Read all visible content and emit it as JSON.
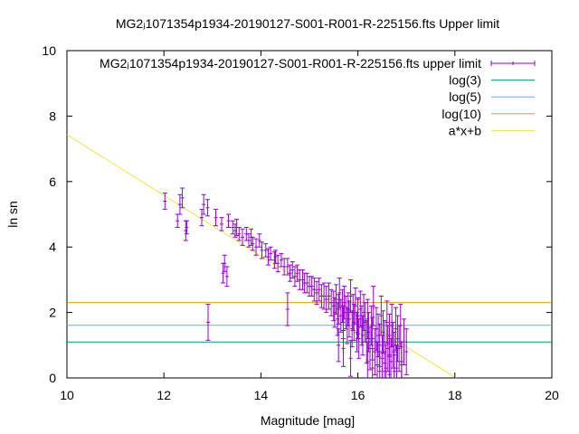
{
  "chart_data": {
    "type": "scatter",
    "title": "MG2ⱼ1071354p1934-20190127-S001-R001-R-225156.fts Upper limit",
    "xlabel": "Magnitude [mag]",
    "ylabel": "ln sn",
    "xlim": [
      10,
      20
    ],
    "ylim": [
      0,
      10
    ],
    "x_ticks": [
      "10",
      "12",
      "14",
      "16",
      "18",
      "20"
    ],
    "y_ticks": [
      "0",
      "2",
      "4",
      "6",
      "8",
      "10"
    ],
    "grid": false,
    "legend_position": "top-right",
    "legend": [
      {
        "label": "MG2ⱼ1071354p1934-20190127-S001-R001-R-225156.fts upper limit",
        "color": "#9400d3",
        "style": "errorbar"
      },
      {
        "label": "log(3)",
        "color": "#009e73",
        "style": "line"
      },
      {
        "label": "log(5)",
        "color": "#56b4e9",
        "style": "line"
      },
      {
        "label": "log(10)",
        "color": "#e69f00",
        "style": "line"
      },
      {
        "label": "a*x+b",
        "color": "#f0e442",
        "style": "line"
      }
    ],
    "hlines": [
      {
        "name": "log(3)",
        "y": 1.0986,
        "color": "#009e73"
      },
      {
        "name": "log(5)",
        "y": 1.6094,
        "color": "#56b4e9"
      },
      {
        "name": "log(10)",
        "y": 2.3026,
        "color": "#e69f00"
      }
    ],
    "fit_line": {
      "name": "a*x+b",
      "a": -0.926,
      "b": 16.69,
      "color": "#f0e442"
    },
    "series": [
      {
        "name": "MG2ⱼ1071354p1934-20190127-S001-R001-R-225156.fts upper limit",
        "color": "#9400d3",
        "x": [
          12.02,
          12.28,
          12.33,
          12.38,
          12.45,
          12.47,
          12.78,
          12.82,
          12.9,
          12.91,
          13.07,
          13.19,
          13.22,
          13.25,
          13.3,
          13.33,
          13.42,
          13.47,
          13.5,
          13.55,
          13.62,
          13.7,
          13.75,
          13.8,
          13.83,
          13.9,
          13.97,
          14.02,
          14.1,
          14.15,
          14.2,
          14.28,
          14.3,
          14.35,
          14.42,
          14.48,
          14.55,
          14.6,
          14.65,
          14.7,
          14.75,
          14.8,
          14.86,
          14.9,
          14.95,
          15.0,
          15.05,
          15.1,
          15.15,
          15.2,
          15.25,
          15.3,
          15.35,
          15.4,
          15.45,
          15.5,
          15.52,
          15.55,
          15.58,
          15.6,
          15.62,
          15.65,
          15.68,
          15.7,
          15.72,
          15.75,
          15.78,
          15.8,
          15.82,
          15.85,
          15.88,
          15.9,
          15.92,
          15.95,
          15.98,
          16.0,
          16.02,
          16.05,
          16.08,
          16.1,
          16.12,
          16.15,
          16.18,
          16.2,
          16.22,
          16.25,
          16.28,
          16.3,
          16.32,
          16.35,
          16.38,
          16.4,
          16.42,
          16.45,
          16.48,
          16.5,
          16.52,
          16.55,
          16.58,
          16.6,
          16.62,
          16.65,
          16.68,
          16.7,
          16.72,
          16.75,
          16.78,
          16.8,
          16.82,
          16.85,
          16.88,
          16.9,
          16.95,
          17.0,
          14.55,
          15.6,
          15.7,
          15.85,
          16.0,
          16.2,
          16.3,
          16.45,
          16.55,
          16.65,
          16.75,
          16.9
        ],
        "y": [
          5.4,
          4.8,
          5.3,
          5.5,
          4.5,
          4.6,
          4.9,
          5.3,
          5.2,
          1.7,
          4.9,
          4.7,
          3.2,
          3.5,
          3.1,
          4.8,
          4.6,
          4.5,
          4.6,
          4.4,
          4.3,
          4.4,
          4.2,
          4.3,
          4.1,
          4.0,
          4.2,
          3.9,
          3.9,
          3.7,
          3.8,
          3.6,
          3.7,
          3.5,
          3.6,
          3.4,
          3.4,
          3.2,
          3.3,
          3.1,
          3.2,
          3.0,
          3.0,
          2.9,
          2.9,
          2.8,
          2.8,
          2.7,
          2.6,
          2.7,
          2.5,
          2.5,
          2.4,
          2.5,
          2.3,
          2.2,
          2.0,
          2.4,
          1.8,
          2.1,
          2.6,
          1.9,
          2.2,
          1.7,
          2.3,
          2.0,
          1.6,
          2.1,
          1.8,
          2.5,
          1.5,
          2.0,
          1.7,
          2.2,
          1.4,
          1.9,
          1.2,
          2.1,
          1.6,
          1.3,
          2.0,
          1.7,
          1.1,
          1.8,
          1.4,
          0.9,
          1.6,
          1.2,
          2.2,
          0.8,
          1.5,
          0.4,
          1.3,
          1.0,
          1.9,
          0.6,
          1.4,
          1.1,
          0.3,
          1.7,
          0.9,
          1.3,
          0.5,
          1.6,
          1.0,
          0.7,
          1.5,
          0.3,
          1.2,
          0.9,
          1.6,
          0.4,
          1.1,
          0.8,
          2.1,
          1.0,
          0.9,
          0.6,
          1.8,
          0.5,
          0.3,
          0.2,
          0.2,
          0.1,
          0.2,
          0.5
        ],
        "err": [
          0.25,
          0.2,
          0.3,
          0.3,
          0.3,
          0.2,
          0.25,
          0.3,
          0.25,
          0.55,
          0.25,
          0.2,
          0.3,
          0.25,
          0.3,
          0.2,
          0.2,
          0.2,
          0.25,
          0.2,
          0.25,
          0.2,
          0.2,
          0.25,
          0.2,
          0.25,
          0.2,
          0.25,
          0.2,
          0.25,
          0.2,
          0.25,
          0.2,
          0.25,
          0.2,
          0.25,
          0.25,
          0.25,
          0.25,
          0.3,
          0.25,
          0.3,
          0.3,
          0.3,
          0.3,
          0.3,
          0.3,
          0.35,
          0.35,
          0.35,
          0.35,
          0.4,
          0.4,
          0.4,
          0.4,
          0.45,
          0.45,
          0.45,
          0.5,
          0.45,
          0.45,
          0.5,
          0.5,
          0.5,
          0.5,
          0.5,
          0.55,
          0.5,
          0.55,
          0.5,
          0.55,
          0.55,
          0.55,
          0.55,
          0.6,
          0.55,
          0.6,
          0.55,
          0.6,
          0.6,
          0.55,
          0.6,
          0.65,
          0.6,
          0.6,
          0.65,
          0.6,
          0.65,
          0.6,
          0.7,
          0.65,
          0.7,
          0.65,
          0.65,
          0.6,
          0.7,
          0.65,
          0.65,
          0.7,
          0.65,
          0.7,
          0.65,
          0.7,
          0.65,
          0.7,
          0.7,
          0.65,
          0.7,
          0.7,
          0.7,
          0.65,
          0.7,
          0.7,
          0.7,
          0.5,
          0.5,
          0.55,
          0.55,
          0.6,
          0.6,
          0.6,
          0.6,
          0.6,
          0.6,
          0.6,
          0.6
        ]
      }
    ]
  }
}
